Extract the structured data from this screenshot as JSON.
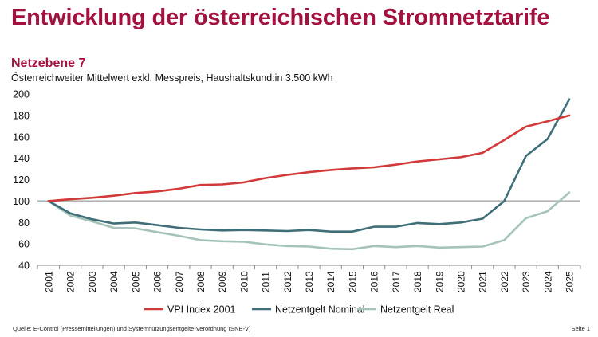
{
  "page": {
    "title": "Entwicklung der österreichischen Stromnetztarife",
    "source": "Quelle: E-Control (Pressemitteilungen) und Systemnutzungsentgelte-Verordnung (SNE-V)",
    "page_label": "Seite 1"
  },
  "chart_data": {
    "type": "line",
    "title": "Netzebene 7",
    "subtitle": "Österreichweiter Mittelwert exkl. Messpreis, Haushaltskund:in 3.500 kWh",
    "xlabel": "",
    "ylabel": "",
    "ylim": [
      40,
      200
    ],
    "yticks": [
      40,
      60,
      80,
      100,
      120,
      140,
      160,
      180,
      200
    ],
    "grid": false,
    "legend_position": "bottom",
    "reference_line": {
      "value": 100,
      "color": "#b3b3b3"
    },
    "categories": [
      "2001",
      "2002",
      "2003",
      "2004",
      "2005",
      "2006",
      "2007",
      "2008",
      "2009",
      "2010",
      "2011",
      "2012",
      "2013",
      "2014",
      "2015",
      "2016",
      "2017",
      "2018",
      "2019",
      "2020",
      "2021",
      "2022",
      "2023",
      "2024",
      "2025"
    ],
    "series": [
      {
        "name": "VPI Index 2001",
        "color": "#d23a3a",
        "values": [
          100,
          101.7,
          103,
          105,
          107.5,
          109,
          111.5,
          115,
          115.5,
          117.5,
          121.5,
          124.5,
          127,
          129,
          130.5,
          131.5,
          134,
          137,
          139,
          141,
          145,
          157,
          169.5,
          174.5,
          180
        ]
      },
      {
        "name": "Netzentgelt Nominal",
        "color": "#3e6e78",
        "values": [
          100,
          88.5,
          83,
          79,
          80,
          77.5,
          75,
          73.5,
          72.5,
          73,
          72.5,
          72,
          73,
          71.5,
          71.5,
          76,
          76,
          79.5,
          78.5,
          80,
          83.5,
          100,
          142,
          158,
          195
        ]
      },
      {
        "name": "Netzentgelt Real",
        "color": "#a5c3b9",
        "values": [
          100,
          86.5,
          81,
          75,
          74.5,
          71,
          67.5,
          63.5,
          62.5,
          62,
          59.5,
          58,
          57.5,
          55.5,
          55,
          58,
          57,
          58,
          56.5,
          57,
          57.5,
          63.5,
          84,
          90.5,
          108
        ]
      }
    ]
  }
}
